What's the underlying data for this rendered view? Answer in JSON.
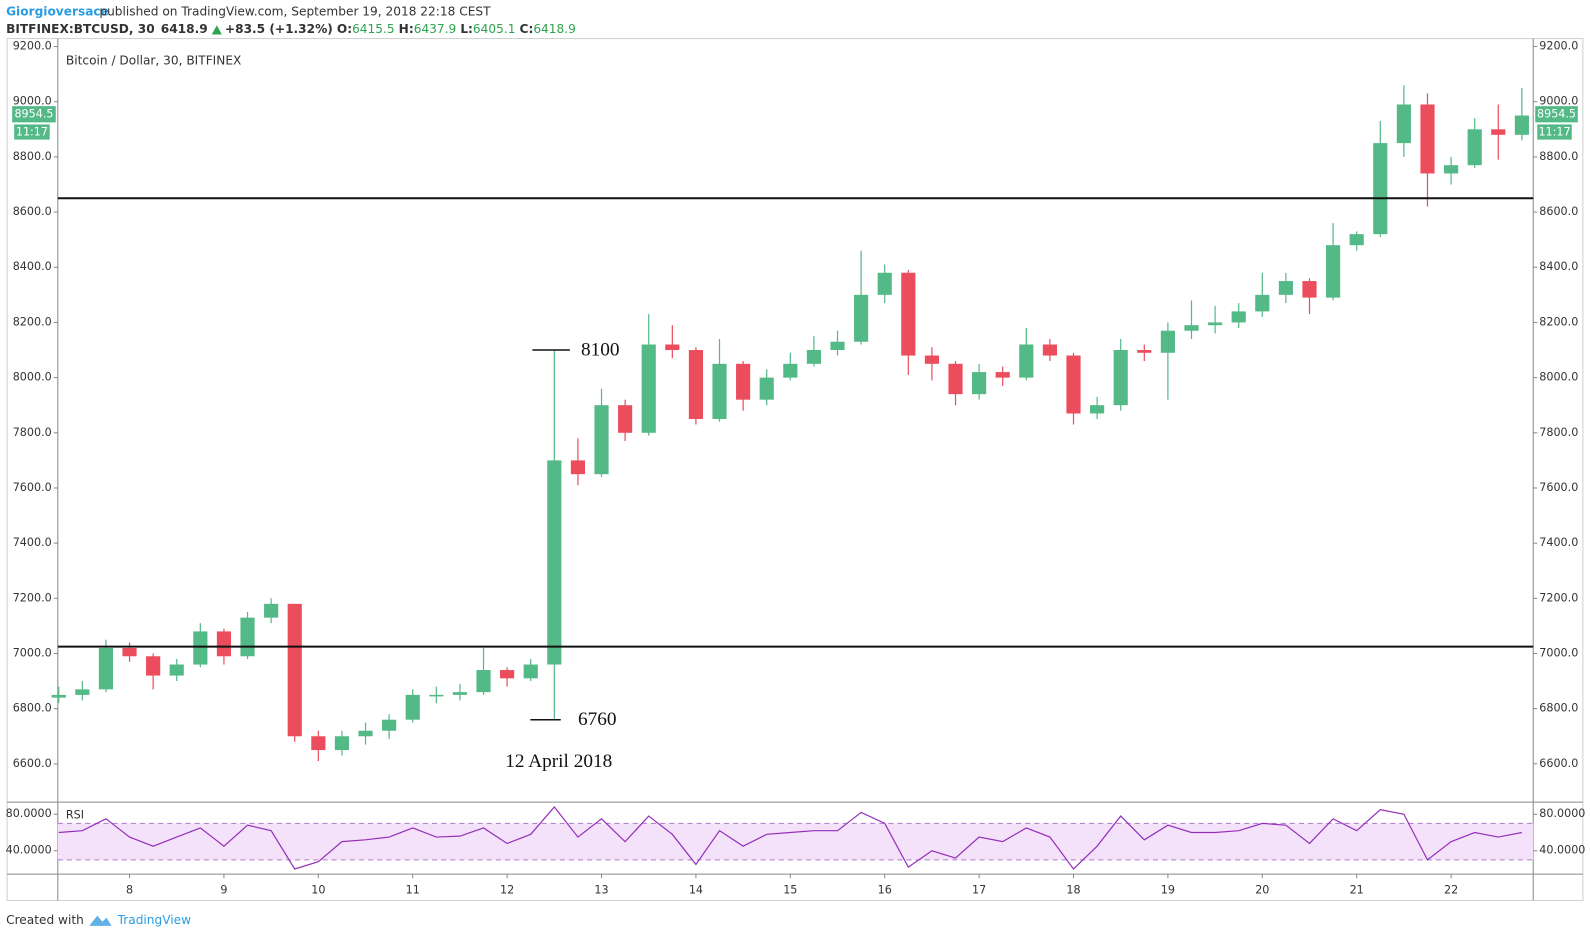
{
  "header": {
    "author": "Giorgioversace",
    "published": "published on TradingView.com, September 19, 2018 22:18 CEST",
    "symbol": "BITFINEX:BTCUSD, 30",
    "last": "6418.9",
    "change": "+83.5 (+1.32%)",
    "quote": [
      {
        "key": "O:",
        "value": "6415.5"
      },
      {
        "key": "H:",
        "value": "6437.9"
      },
      {
        "key": "L:",
        "value": "6405.1"
      },
      {
        "key": "C:",
        "value": "6418.9"
      }
    ]
  },
  "footer": {
    "created": "Created with",
    "brand": "TradingView"
  },
  "chart_data": {
    "type": "candlestick",
    "title": "Bitcoin / Dollar, 30, BITFINEX",
    "x": [
      7.25,
      7.5,
      7.75,
      8,
      8.25,
      8.5,
      8.75,
      9,
      9.25,
      9.5,
      9.75,
      10,
      10.25,
      10.5,
      10.75,
      11,
      11.25,
      11.5,
      11.75,
      12,
      12.25,
      12.5,
      12.75,
      13,
      13.25,
      13.5,
      13.75,
      14,
      14.25,
      14.5,
      14.75,
      15,
      15.25,
      15.5,
      15.75,
      16,
      16.25,
      16.5,
      16.75,
      17,
      17.25,
      17.5,
      17.75,
      18,
      18.25,
      18.5,
      18.75,
      19,
      19.25,
      19.5,
      19.75,
      20,
      20.25,
      20.5,
      20.75,
      21,
      21.25,
      21.5,
      21.75,
      22,
      22.25,
      22.5,
      22.75
    ],
    "open": [
      6840,
      6850,
      6870,
      7020,
      6990,
      6920,
      6960,
      7080,
      6990,
      7130,
      7180,
      6700,
      6650,
      6700,
      6720,
      6760,
      6850,
      6850,
      6860,
      6940,
      6910,
      6960,
      7700,
      7650,
      7900,
      7800,
      8120,
      8100,
      7850,
      8050,
      7920,
      8000,
      8050,
      8100,
      8130,
      8300,
      8380,
      8080,
      8050,
      7940,
      8020,
      8000,
      8120,
      8080,
      7870,
      7900,
      8100,
      8090,
      8170,
      8190,
      8200,
      8240,
      8300,
      8350,
      8290,
      8480,
      8520,
      8850,
      8990,
      8740,
      8770,
      8900,
      8880
    ],
    "high": [
      6880,
      6900,
      7050,
      7040,
      7000,
      6980,
      7110,
      7090,
      7150,
      7200,
      7180,
      6720,
      6720,
      6750,
      6780,
      6870,
      6880,
      6890,
      7020,
      6950,
      6980,
      8100,
      7780,
      7960,
      7920,
      8230,
      8190,
      8110,
      8140,
      8060,
      8030,
      8090,
      8150,
      8170,
      8460,
      8410,
      8390,
      8110,
      8060,
      8050,
      8040,
      8180,
      8140,
      8090,
      7930,
      8140,
      8120,
      8200,
      8280,
      8260,
      8270,
      8380,
      8380,
      8360,
      8560,
      8530,
      8930,
      9060,
      9030,
      8800,
      8940,
      8990,
      9050
    ],
    "low": [
      6820,
      6830,
      6860,
      6970,
      6870,
      6900,
      6950,
      6960,
      6980,
      7110,
      6680,
      6610,
      6630,
      6670,
      6690,
      6750,
      6820,
      6830,
      6850,
      6880,
      6900,
      6760,
      7610,
      7640,
      7770,
      7790,
      8070,
      7830,
      7840,
      7880,
      7900,
      7990,
      8040,
      8080,
      8120,
      8270,
      8010,
      7990,
      7900,
      7920,
      7970,
      7990,
      8060,
      7830,
      7850,
      7880,
      8060,
      7920,
      8140,
      8160,
      8180,
      8220,
      8270,
      8230,
      8280,
      8460,
      8510,
      8800,
      8620,
      8700,
      8760,
      8790,
      8860
    ],
    "close": [
      6850,
      6870,
      7020,
      6990,
      6920,
      6960,
      7080,
      6990,
      7130,
      7180,
      6700,
      6650,
      6700,
      6720,
      6760,
      6850,
      6850,
      6860,
      6940,
      6910,
      6960,
      7700,
      7650,
      7900,
      7800,
      8120,
      8100,
      7850,
      8050,
      7920,
      8000,
      8050,
      8100,
      8130,
      8300,
      8380,
      8080,
      8050,
      7940,
      8020,
      8000,
      8120,
      8080,
      7870,
      7900,
      8100,
      8090,
      8170,
      8190,
      8200,
      8240,
      8300,
      8350,
      8290,
      8480,
      8520,
      8850,
      8990,
      8740,
      8770,
      8900,
      8880,
      8950
    ],
    "up_color": "#53b987",
    "down_color": "#eb4d5c",
    "xlim": [
      7.24,
      22.87
    ],
    "xticks": [
      8,
      9,
      10,
      11,
      12,
      13,
      14,
      15,
      16,
      17,
      18,
      19,
      20,
      21,
      22
    ],
    "ylim": [
      6465,
      9229
    ],
    "yticks": [
      {
        "value": 6600,
        "label": "6600.0"
      },
      {
        "value": 6800,
        "label": "6800.0"
      },
      {
        "value": 7000,
        "label": "7000.0"
      },
      {
        "value": 7200,
        "label": "7200.0"
      },
      {
        "value": 7400,
        "label": "7400.0"
      },
      {
        "value": 7600,
        "label": "7600.0"
      },
      {
        "value": 7800,
        "label": "7800.0"
      },
      {
        "value": 8000,
        "label": "8000.0"
      },
      {
        "value": 8200,
        "label": "8200.0"
      },
      {
        "value": 8400,
        "label": "8400.0"
      },
      {
        "value": 8600,
        "label": "8600.0"
      },
      {
        "value": 8800,
        "label": "8800.0"
      },
      {
        "value": 9000,
        "label": "9000.0"
      },
      {
        "value": 9200,
        "label": "9200.0"
      }
    ],
    "levels": [
      8650,
      7025
    ],
    "annotations": [
      8100,
      6760
    ],
    "date_label": "12 April 2018",
    "last_price": 8954.5,
    "countdown": "11:17",
    "tag_color": "#53b987",
    "rsi": {
      "label": "RSI",
      "color": "#9430b8",
      "band_color": "#f4e2fb",
      "band": [
        30,
        70
      ],
      "ylim": [
        14.4,
        92.2
      ],
      "yticks": [
        {
          "value": 80,
          "label": "80.0000"
        },
        {
          "value": 40,
          "label": "40.0000"
        }
      ],
      "values": [
        60,
        62,
        75,
        55,
        45,
        55,
        65,
        45,
        68,
        62,
        20,
        28,
        50,
        52,
        55,
        65,
        55,
        56,
        65,
        48,
        58,
        88,
        55,
        75,
        50,
        78,
        58,
        25,
        62,
        45,
        58,
        60,
        62,
        62,
        82,
        70,
        22,
        40,
        32,
        55,
        50,
        65,
        55,
        20,
        45,
        78,
        52,
        68,
        60,
        60,
        62,
        70,
        68,
        48,
        75,
        62,
        85,
        80,
        30,
        50,
        60,
        55,
        60
      ]
    }
  }
}
